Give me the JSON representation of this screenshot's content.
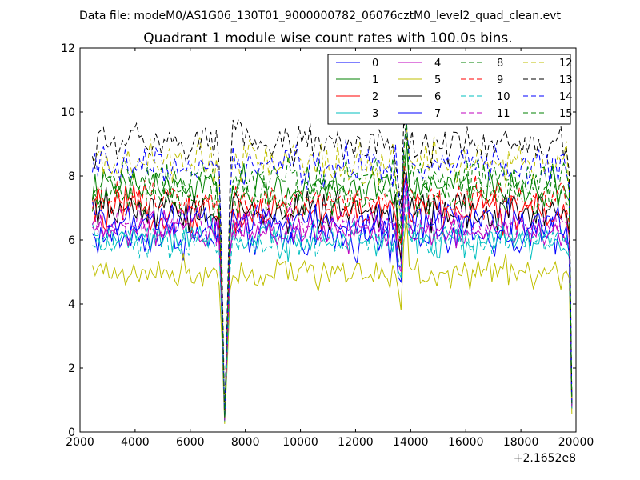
{
  "chart_data": {
    "type": "line",
    "suptitle": "Data file: modeM0/AS1G06_130T01_9000000782_06076cztM0_level2_quad_clean.evt",
    "title": "Quadrant 1 module wise count rates with 100.0s bins.",
    "xlabel": "",
    "ylabel": "",
    "x_offset_label": "+2.1652e8",
    "xlim": [
      2000,
      20000
    ],
    "ylim": [
      0,
      12
    ],
    "x_ticks": [
      2000,
      4000,
      6000,
      8000,
      10000,
      12000,
      14000,
      16000,
      18000,
      20000
    ],
    "y_ticks": [
      0,
      2,
      4,
      6,
      8,
      10,
      12
    ],
    "x_range": [
      2450,
      19850
    ],
    "dip_segments": [
      {
        "start": 6950,
        "end": 7500,
        "center": 7260,
        "half_width": 140,
        "min_fraction": 0.05
      },
      {
        "start": 13450,
        "end": 14050,
        "center": 13620,
        "half_width": 110,
        "min_fraction": 0.75
      },
      {
        "start": 19700,
        "end": 19850,
        "center": 19850,
        "half_width": 70,
        "min_fraction": 0.12
      }
    ],
    "bump_segments": [
      {
        "center": 13800,
        "half_width": 90,
        "amplitude": 1.8
      }
    ],
    "legend": {
      "location": "top-right",
      "columns": 4
    },
    "series": [
      {
        "name": "0",
        "color": "#0000ff",
        "style": "solid",
        "mean": 6.1,
        "noise": 0.45
      },
      {
        "name": "1",
        "color": "#008000",
        "style": "solid",
        "mean": 7.6,
        "noise": 0.45
      },
      {
        "name": "2",
        "color": "#ff0000",
        "style": "solid",
        "mean": 6.9,
        "noise": 0.45
      },
      {
        "name": "3",
        "color": "#00bfbf",
        "style": "solid",
        "mean": 6.0,
        "noise": 0.4
      },
      {
        "name": "4",
        "color": "#bf00bf",
        "style": "solid",
        "mean": 6.3,
        "noise": 0.4
      },
      {
        "name": "5",
        "color": "#bfbf00",
        "style": "solid",
        "mean": 5.0,
        "noise": 0.35
      },
      {
        "name": "6",
        "color": "#000000",
        "style": "solid",
        "mean": 6.9,
        "noise": 0.45
      },
      {
        "name": "7",
        "color": "#0000ff",
        "style": "solid",
        "mean": 6.6,
        "noise": 0.45
      },
      {
        "name": "8",
        "color": "#008000",
        "style": "dashed",
        "mean": 7.4,
        "noise": 0.45
      },
      {
        "name": "9",
        "color": "#ff0000",
        "style": "dashed",
        "mean": 7.3,
        "noise": 0.4
      },
      {
        "name": "10",
        "color": "#00bfbf",
        "style": "dashed",
        "mean": 6.0,
        "noise": 0.4
      },
      {
        "name": "11",
        "color": "#bf00bf",
        "style": "dashed",
        "mean": 6.5,
        "noise": 0.4
      },
      {
        "name": "12",
        "color": "#bfbf00",
        "style": "dashed",
        "mean": 8.4,
        "noise": 0.5
      },
      {
        "name": "13",
        "color": "#000000",
        "style": "dashed",
        "mean": 9.0,
        "noise": 0.5
      },
      {
        "name": "14",
        "color": "#0000ff",
        "style": "dashed",
        "mean": 8.3,
        "noise": 0.45
      },
      {
        "name": "15",
        "color": "#008000",
        "style": "dashed",
        "mean": 7.9,
        "noise": 0.45
      }
    ]
  }
}
